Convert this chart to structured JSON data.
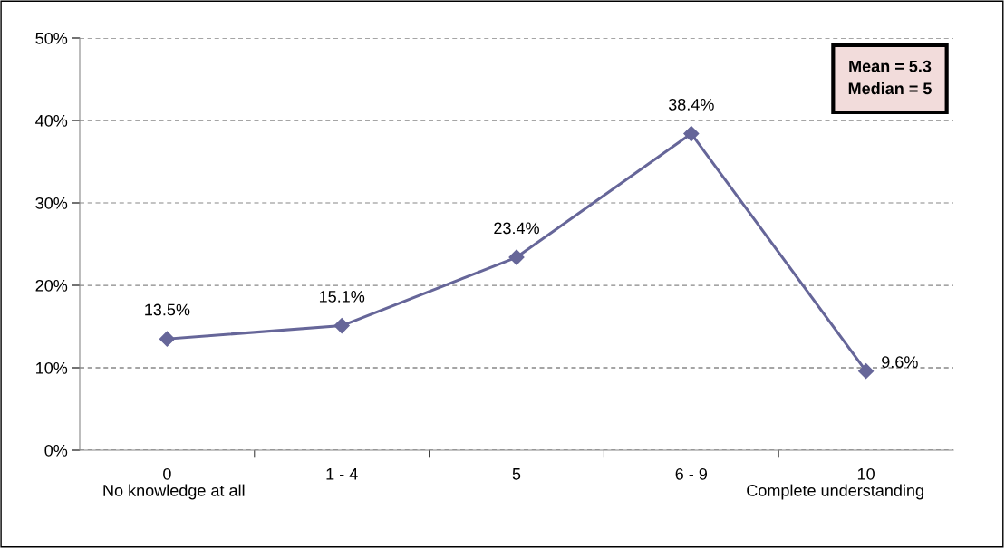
{
  "chart_data": {
    "type": "line",
    "categories": [
      "0",
      "1 - 4",
      "5",
      "6 - 9",
      "10"
    ],
    "series": [
      {
        "color": "#666699",
        "values": [
          13.5,
          15.1,
          23.4,
          38.4,
          9.6
        ],
        "value_labels": [
          "13.5%",
          "15.1%",
          "23.4%",
          "38.4%",
          "9.6%"
        ]
      }
    ],
    "ylim": [
      0,
      50
    ],
    "yticks": [
      {
        "value": 0,
        "label": "0%"
      },
      {
        "value": 10,
        "label": "10%"
      },
      {
        "value": 20,
        "label": "20%"
      },
      {
        "value": 30,
        "label": "30%"
      },
      {
        "value": 40,
        "label": "40%"
      },
      {
        "value": 50,
        "label": "50%"
      }
    ],
    "grid": "y",
    "marker": "diamond",
    "line_style": "solid",
    "legend": false,
    "annotations": [
      "No knowledge at all",
      "Complete understanding",
      "Mean = 5.3\nMedian = 5"
    ]
  }
}
